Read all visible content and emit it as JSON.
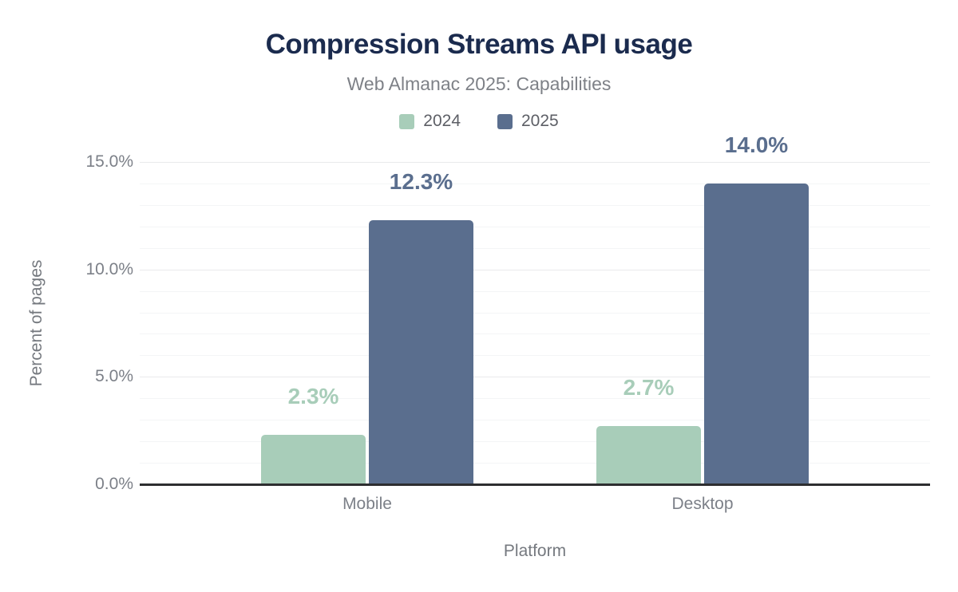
{
  "header": {
    "title": "Compression Streams API usage",
    "subtitle": "Web Almanac 2025: Capabilities"
  },
  "chart_data": {
    "type": "bar",
    "title": "Compression Streams API usage",
    "subtitle": "Web Almanac 2025: Capabilities",
    "categories": [
      "Mobile",
      "Desktop"
    ],
    "series": [
      {
        "name": "2024",
        "color": "#a8cdb9",
        "values": [
          2.3,
          2.7
        ],
        "labels": [
          "2.3%",
          "2.7%"
        ]
      },
      {
        "name": "2025",
        "color": "#5a6e8e",
        "values": [
          12.3,
          14.0
        ],
        "labels": [
          "12.3%",
          "14.0%"
        ]
      }
    ],
    "xlabel": "Platform",
    "ylabel": "Percent of pages",
    "ylim": [
      0,
      15
    ],
    "yticks": [
      {
        "value": 0,
        "label": "0.0%"
      },
      {
        "value": 5,
        "label": "5.0%"
      },
      {
        "value": 10,
        "label": "10.0%"
      },
      {
        "value": 15,
        "label": "15.0%"
      }
    ],
    "grid": "horizontal gridlines every 1%, emphasized every 5%",
    "legend_position": "top-center"
  },
  "colors": {
    "title": "#1b2b4e",
    "subtitle": "#7e8187",
    "series_2024": "#a8cdb9",
    "series_2025": "#5a6e8e",
    "axis_line": "#2d2e30",
    "tick_label": "#7c8088",
    "gridline_major": "#e9eaec",
    "gridline_minor": "#f4f5f6",
    "background": "#ffffff"
  }
}
